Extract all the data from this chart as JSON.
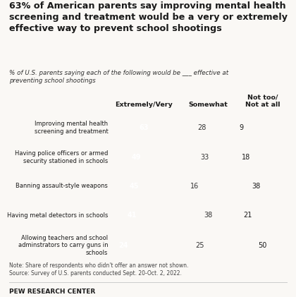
{
  "title": "63% of American parents say improving mental health\nscreening and treatment would be a very or extremely\neffective way to prevent school shootings",
  "subtitle": "% of U.S. parents saying each of the following would be ___ effective at\npreventing school shootings",
  "categories": [
    "Improving mental health\nscreening and treatment",
    "Having police officers or armed\nsecurity stationed in schools",
    "Banning assault-style weapons",
    "Having metal detectors in schools",
    "Allowing teachers and school\nadminstrators to carry guns in\nschools"
  ],
  "extremely_very": [
    63,
    49,
    45,
    41,
    24
  ],
  "somewhat": [
    28,
    33,
    16,
    38,
    25
  ],
  "not_too": [
    9,
    18,
    38,
    21,
    50
  ],
  "color_extremely": "#2e7060",
  "color_somewhat": "#e0dbd0",
  "color_not_too": "#c9a227",
  "col_headers": [
    "Extremely/Very",
    "Somewhat",
    "Not too/\nNot at all"
  ],
  "note": "Note: Share of respondents who didn't offer an answer not shown.\nSource: Survey of U.S. parents conducted Sept. 20-Oct. 2, 2022.",
  "footer": "PEW RESEARCH CENTER",
  "background_color": "#faf8f5"
}
